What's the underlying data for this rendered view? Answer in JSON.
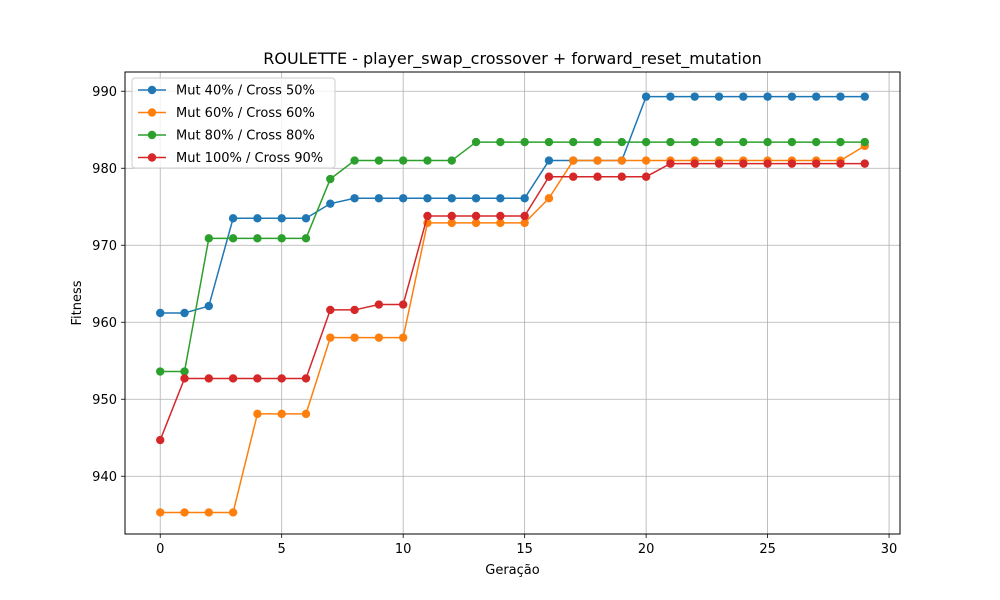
{
  "chart_data": {
    "type": "line",
    "title": "ROULETTE - player_swap_crossover + forward_reset_mutation",
    "xlabel": "Geração",
    "ylabel": "Fitness",
    "xlim": [
      -1.45,
      30.45
    ],
    "ylim": [
      932.5,
      992.5
    ],
    "xticks": [
      0,
      5,
      10,
      15,
      20,
      25,
      30
    ],
    "yticks": [
      940,
      950,
      960,
      970,
      980,
      990
    ],
    "grid": true,
    "legend_position": "top-left",
    "x": [
      0,
      1,
      2,
      3,
      4,
      5,
      6,
      7,
      8,
      9,
      10,
      11,
      12,
      13,
      14,
      15,
      16,
      17,
      18,
      19,
      20,
      21,
      22,
      23,
      24,
      25,
      26,
      27,
      28,
      29
    ],
    "series": [
      {
        "name": "Mut 40% / Cross 50%",
        "color": "#1f77b4",
        "values": [
          961.2,
          961.2,
          962.1,
          973.5,
          973.5,
          973.5,
          973.5,
          975.4,
          976.1,
          976.1,
          976.1,
          976.1,
          976.1,
          976.1,
          976.1,
          976.1,
          981.0,
          981.0,
          981.0,
          981.0,
          989.3,
          989.3,
          989.3,
          989.3,
          989.3,
          989.3,
          989.3,
          989.3,
          989.3,
          989.3
        ]
      },
      {
        "name": "Mut 60% / Cross 60%",
        "color": "#ff7f0e",
        "values": [
          935.3,
          935.3,
          935.3,
          935.3,
          948.1,
          948.1,
          948.1,
          958.0,
          958.0,
          958.0,
          958.0,
          972.9,
          972.9,
          972.9,
          972.9,
          972.9,
          976.1,
          981.0,
          981.0,
          981.0,
          981.0,
          981.0,
          981.0,
          981.0,
          981.0,
          981.0,
          981.0,
          981.0,
          981.0,
          982.9
        ]
      },
      {
        "name": "Mut 80% / Cross 80%",
        "color": "#2ca02c",
        "values": [
          953.6,
          953.6,
          970.9,
          970.9,
          970.9,
          970.9,
          970.9,
          978.6,
          981.0,
          981.0,
          981.0,
          981.0,
          981.0,
          983.4,
          983.4,
          983.4,
          983.4,
          983.4,
          983.4,
          983.4,
          983.4,
          983.4,
          983.4,
          983.4,
          983.4,
          983.4,
          983.4,
          983.4,
          983.4,
          983.4
        ]
      },
      {
        "name": "Mut 100% / Cross 90%",
        "color": "#d62728",
        "values": [
          944.7,
          952.7,
          952.7,
          952.7,
          952.7,
          952.7,
          952.7,
          961.6,
          961.6,
          962.3,
          962.3,
          973.8,
          973.8,
          973.8,
          973.8,
          973.8,
          978.9,
          978.9,
          978.9,
          978.9,
          978.9,
          980.6,
          980.6,
          980.6,
          980.6,
          980.6,
          980.6,
          980.6,
          980.6,
          980.6
        ]
      }
    ]
  }
}
